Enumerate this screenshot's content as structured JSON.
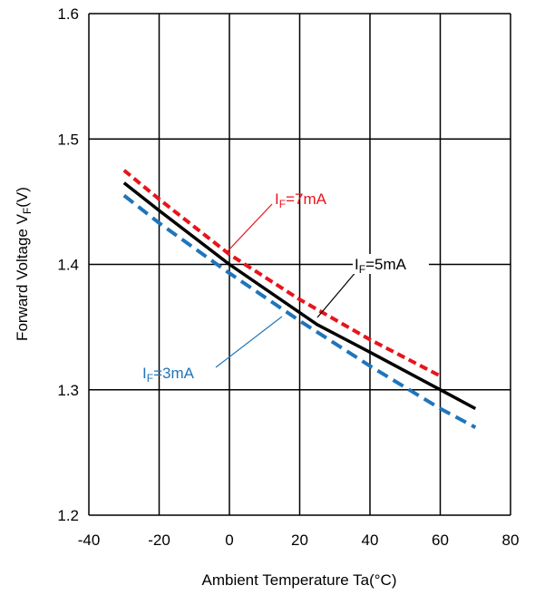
{
  "chart_data": {
    "type": "line",
    "xlabel": "Ambient Temperature Ta(°C)",
    "ylabel": "Forward Voltage VF(V)",
    "xlim": [
      -40,
      80
    ],
    "ylim": [
      1.2,
      1.6
    ],
    "x_ticks": [
      "-40",
      "-20",
      "0",
      "20",
      "40",
      "60",
      "80"
    ],
    "y_ticks": [
      "1.2",
      "1.3",
      "1.4",
      "1.5",
      "1.6"
    ],
    "grid": true,
    "series": [
      {
        "name": "IF=7mA",
        "label_main": "I",
        "label_sub": "F",
        "label_rest": "=7mA",
        "color": "#e8141b",
        "style": "dashed",
        "x": [
          -30,
          -20,
          0,
          20,
          40,
          60
        ],
        "y": [
          1.475,
          1.452,
          1.408,
          1.372,
          1.34,
          1.311
        ]
      },
      {
        "name": "IF=5mA",
        "label_main": "I",
        "label_sub": "F",
        "label_rest": "=5mA",
        "color": "#000000",
        "style": "solid",
        "x": [
          -30,
          -20,
          0,
          25,
          40,
          60,
          70
        ],
        "y": [
          1.465,
          1.443,
          1.4,
          1.352,
          1.33,
          1.3,
          1.285
        ]
      },
      {
        "name": "IF=3mA",
        "label_main": "I",
        "label_sub": "F",
        "label_rest": "=3mA",
        "color": "#1f75bb",
        "style": "dashed",
        "x": [
          -30,
          -20,
          0,
          20,
          40,
          60,
          70
        ],
        "y": [
          1.455,
          1.433,
          1.393,
          1.355,
          1.319,
          1.285,
          1.27
        ]
      }
    ]
  }
}
